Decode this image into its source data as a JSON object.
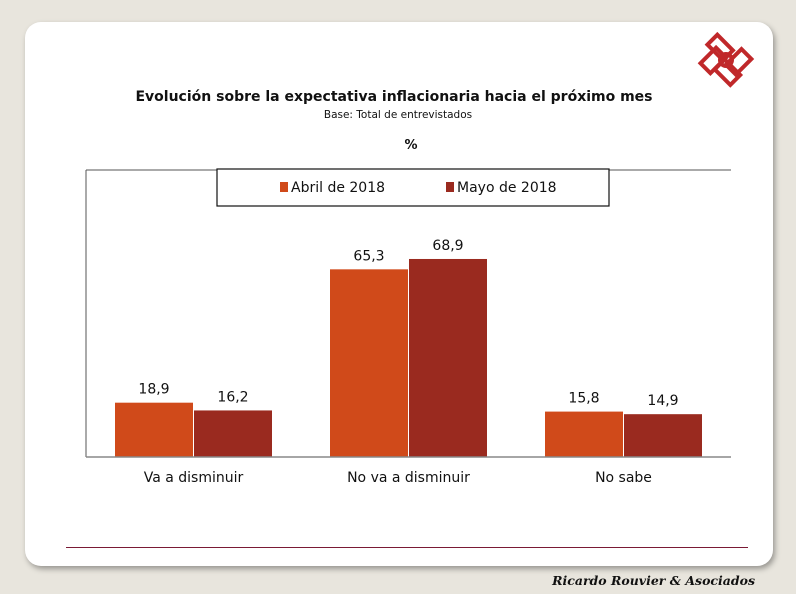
{
  "footer": {
    "company": "Ricardo Rouvier & Asociados"
  },
  "chart_data": {
    "type": "bar",
    "title": "Evolución sobre la expectativa inflacionaria hacia el próximo mes",
    "subtitle": "Base: Total de entrevistados",
    "unit": "%",
    "categories": [
      "Va a disminuir",
      "No va a disminuir",
      "No sabe"
    ],
    "series": [
      {
        "name": "Abril de 2018",
        "color": "#d04a1a",
        "values": [
          18.9,
          65.3,
          15.8
        ],
        "labels": [
          "18,9",
          "65,3",
          "15,8"
        ]
      },
      {
        "name": "Mayo de 2018",
        "color": "#9a2a1f",
        "values": [
          16.2,
          68.9,
          14.9
        ],
        "labels": [
          "16,2",
          "68,9",
          "14,9"
        ]
      }
    ],
    "ylim": [
      0,
      100
    ],
    "grid": false,
    "legend": "top"
  },
  "colors": {
    "logo": "#c0282a",
    "footer_line": "#7a1a35"
  }
}
